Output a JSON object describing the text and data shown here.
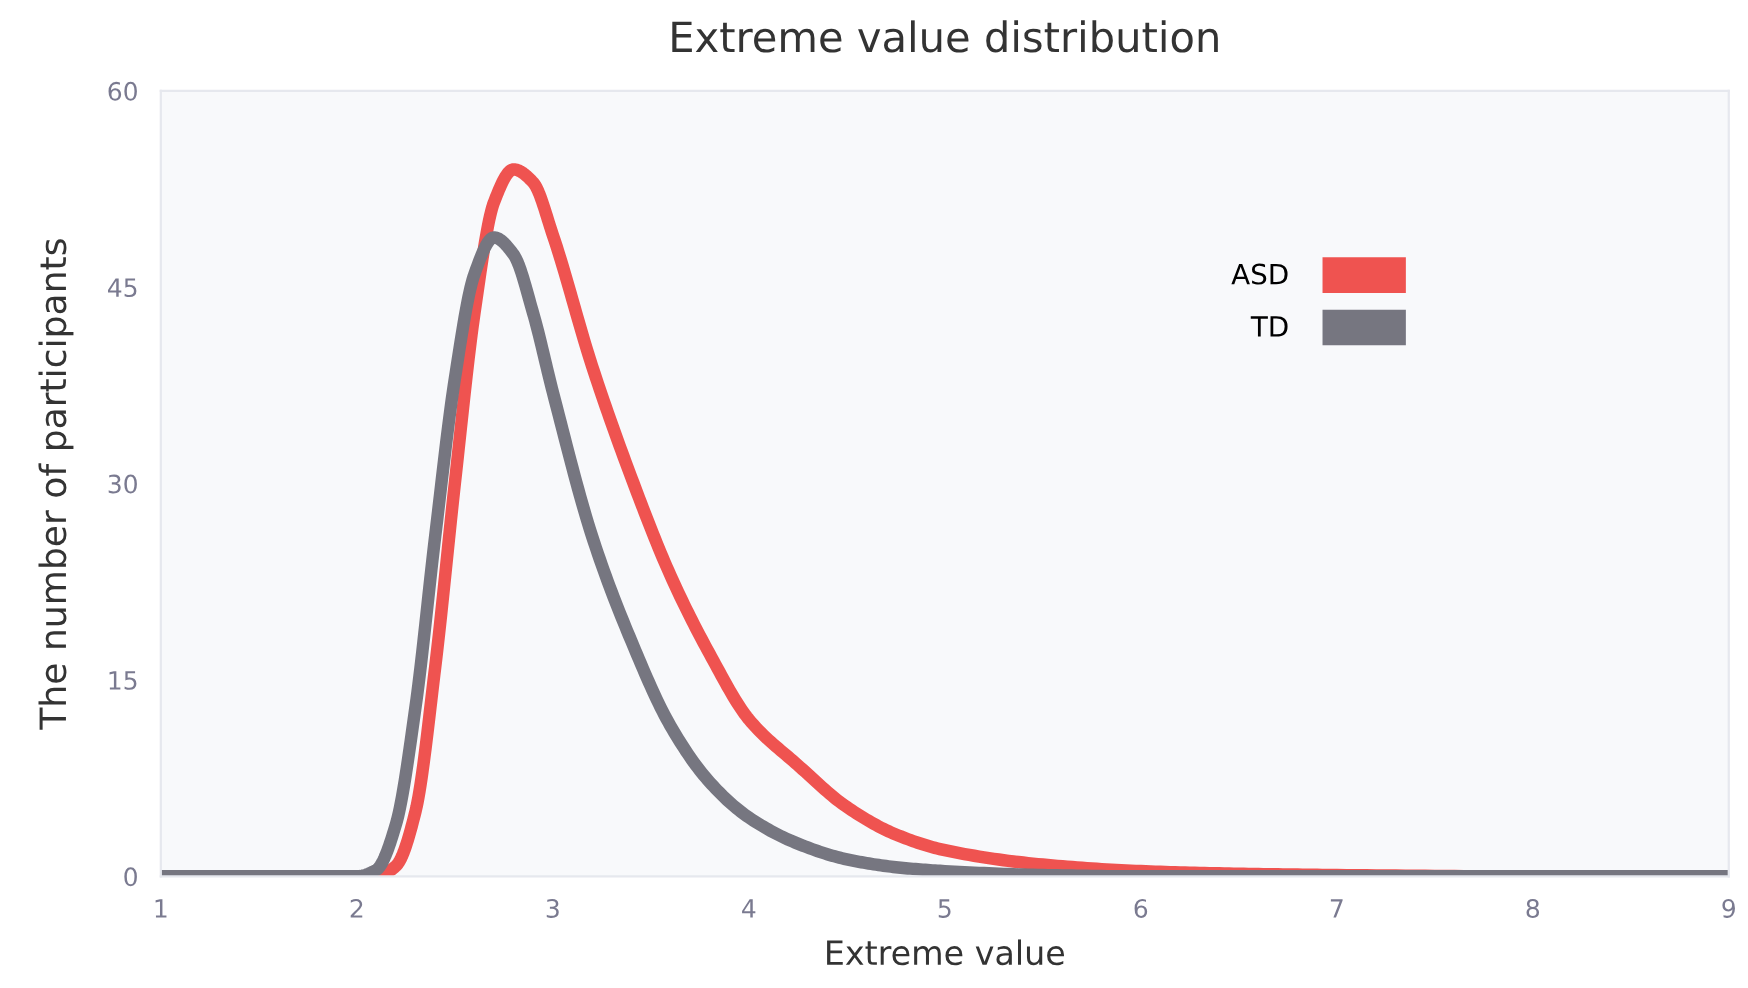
{
  "chart_data": {
    "type": "line",
    "title": "Extreme value distribution",
    "xlabel": "Extreme value",
    "ylabel": "The number of participants",
    "xlim": [
      1,
      9
    ],
    "ylim": [
      0,
      60
    ],
    "xticks": [
      1,
      2,
      3,
      4,
      5,
      6,
      7,
      8,
      9
    ],
    "yticks": [
      0,
      15,
      30,
      45,
      60
    ],
    "grid": false,
    "legend": "top right",
    "marker": "none",
    "line_style": "solid",
    "series": [
      {
        "name": "ASD",
        "color": "#ef5350",
        "x": [
          1,
          2.0,
          2.1,
          2.2,
          2.3,
          2.4,
          2.5,
          2.6,
          2.7,
          2.8,
          2.9,
          3.0,
          3.2,
          3.4,
          3.6,
          3.8,
          4.0,
          4.25,
          4.5,
          4.75,
          5.0,
          5.5,
          6.0,
          6.5,
          7,
          8,
          9
        ],
        "values": [
          0,
          0,
          0,
          0.8,
          5,
          16,
          30,
          43,
          51.5,
          54,
          53,
          49,
          39,
          30.5,
          23,
          17,
          12,
          8.5,
          5.3,
          3.2,
          2,
          0.9,
          0.4,
          0.2,
          0.1,
          0,
          0
        ]
      },
      {
        "name": "TD",
        "color": "#767680",
        "x": [
          1,
          2.0,
          2.1,
          2.2,
          2.3,
          2.4,
          2.5,
          2.6,
          2.7,
          2.8,
          2.9,
          3.0,
          3.2,
          3.4,
          3.6,
          3.8,
          4.0,
          4.25,
          4.5,
          4.75,
          5.0,
          5.5,
          6,
          9
        ],
        "values": [
          0,
          0,
          0.5,
          4,
          13,
          26,
          38,
          46,
          48.8,
          47.5,
          43,
          37,
          26,
          18,
          11.5,
          7.2,
          4.5,
          2.5,
          1.3,
          0.7,
          0.4,
          0.1,
          0,
          0
        ]
      }
    ]
  }
}
